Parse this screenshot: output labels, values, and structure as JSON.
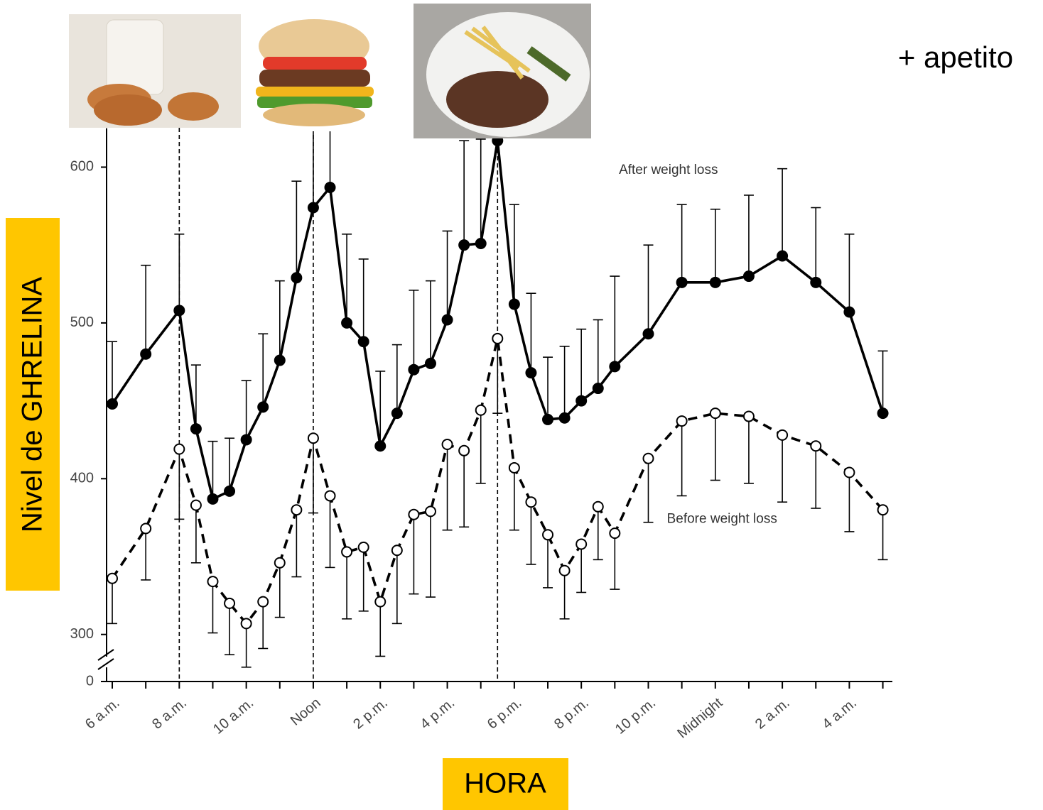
{
  "chart_data": {
    "type": "line",
    "y_label": "Nivel de GHRELINA",
    "x_label": "HORA",
    "side_note": "+ apetito",
    "annotations": [
      {
        "text": "After weight loss",
        "x": 22.6,
        "y": 598
      },
      {
        "text": "Before weight loss",
        "x": 24.2,
        "y": 374
      }
    ],
    "x": [
      6,
      7,
      8,
      8.5,
      9,
      9.5,
      10,
      10.5,
      11,
      11.5,
      12,
      12.5,
      13,
      13.5,
      14,
      14.5,
      15,
      15.5,
      16,
      16.5,
      17,
      17.5,
      18,
      18.5,
      19,
      19.5,
      20,
      20.5,
      21,
      22,
      23,
      24,
      25,
      26,
      27,
      28,
      29
    ],
    "series": [
      {
        "name": "After weight loss",
        "color": "#000000",
        "dashed": false,
        "marker_fill": "#000000",
        "error_direction": "up",
        "values": [
          448,
          480,
          508,
          432,
          387,
          392,
          425,
          446,
          476,
          529,
          574,
          587,
          500,
          488,
          421,
          442,
          470,
          474,
          502,
          550,
          551,
          617,
          512,
          468,
          438,
          439,
          450,
          458,
          472,
          493,
          526,
          526,
          530,
          543,
          526,
          507,
          442
        ],
        "errors": [
          40,
          57,
          49,
          41,
          37,
          34,
          38,
          47,
          51,
          62,
          61,
          53,
          57,
          53,
          48,
          44,
          51,
          53,
          57,
          67,
          67,
          23,
          64,
          51,
          40,
          46,
          46,
          44,
          58,
          57,
          50,
          47,
          52,
          56,
          48,
          50,
          40
        ]
      },
      {
        "name": "Before weight loss",
        "color": "#000000",
        "dashed": true,
        "marker_fill": "#ffffff",
        "error_direction": "down",
        "values": [
          336,
          368,
          419,
          383,
          334,
          320,
          307,
          321,
          346,
          380,
          426,
          389,
          353,
          356,
          321,
          354,
          377,
          379,
          422,
          418,
          444,
          490,
          407,
          385,
          364,
          341,
          358,
          382,
          365,
          413,
          437,
          442,
          440,
          428,
          421,
          404,
          380
        ],
        "errors": [
          29,
          33,
          45,
          37,
          33,
          33,
          28,
          30,
          35,
          43,
          48,
          46,
          43,
          41,
          35,
          47,
          51,
          55,
          55,
          49,
          47,
          48,
          40,
          40,
          34,
          31,
          31,
          34,
          36,
          41,
          48,
          43,
          43,
          43,
          40,
          38,
          32
        ]
      }
    ],
    "meal_lines": [
      8,
      12,
      17.5
    ],
    "xlim": [
      5.83,
      29.2
    ],
    "xticks": [
      {
        "value": 6,
        "label": "6 a.m."
      },
      {
        "value": 8,
        "label": "8 a.m."
      },
      {
        "value": 10,
        "label": "10 a.m."
      },
      {
        "value": 12,
        "label": "Noon"
      },
      {
        "value": 14,
        "label": "2 p.m."
      },
      {
        "value": 16,
        "label": "4 p.m."
      },
      {
        "value": 18,
        "label": "6 p.m."
      },
      {
        "value": 20,
        "label": "8 p.m."
      },
      {
        "value": 22,
        "label": "10 p.m."
      },
      {
        "value": 24,
        "label": "Midnight"
      },
      {
        "value": 26,
        "label": "2 a.m."
      },
      {
        "value": 28,
        "label": "4 a.m."
      }
    ],
    "x_minor_ticks": [
      7,
      9,
      11,
      13,
      15,
      17,
      19,
      21,
      23,
      25,
      27,
      29
    ],
    "ylim": [
      278,
      625
    ],
    "yticks": [
      0,
      300,
      400,
      500,
      600
    ],
    "axis_break": true
  }
}
